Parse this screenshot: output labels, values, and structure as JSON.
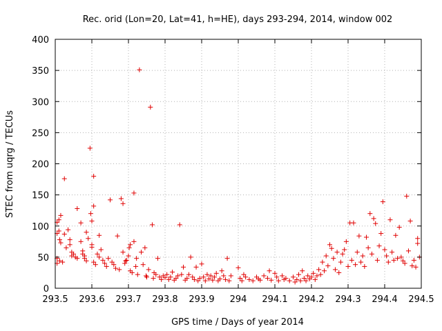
{
  "chart_data": {
    "type": "scatter",
    "title": "Rec. orid (Lon=20, Lat=41, h=HE), days 293-294, 2014, window 002",
    "xlabel": "GPS time / Days of year 2014",
    "ylabel": "STEC from uqrg / TECUs",
    "xlim": [
      293.5,
      294.5
    ],
    "ylim": [
      0,
      400
    ],
    "xticks": [
      293.5,
      293.6,
      293.7,
      293.8,
      293.9,
      294,
      294.1,
      294.2,
      294.3,
      294.4,
      294.5
    ],
    "xtick_labels": [
      "293.5",
      "293.6",
      "293.7",
      "293.8",
      "293.9",
      "294",
      "294.1",
      "294.2",
      "294.3",
      "294.4",
      "294.5"
    ],
    "yticks": [
      0,
      50,
      100,
      150,
      200,
      250,
      300,
      350,
      400
    ],
    "ytick_labels": [
      "0",
      "50",
      "100",
      "150",
      "200",
      "250",
      "300",
      "350",
      "400"
    ],
    "grid": true,
    "marker": "+",
    "color": "#e00000",
    "series": [
      {
        "name": "STEC",
        "points": [
          [
            293.505,
            106
          ],
          [
            293.51,
            92
          ],
          [
            293.515,
            117
          ],
          [
            293.51,
            110
          ],
          [
            293.505,
            88
          ],
          [
            293.515,
            73
          ],
          [
            293.512,
            78
          ],
          [
            293.505,
            48
          ],
          [
            293.512,
            44
          ],
          [
            293.52,
            42
          ],
          [
            293.505,
            40
          ],
          [
            293.525,
            176
          ],
          [
            293.525,
            87
          ],
          [
            293.53,
            65
          ],
          [
            293.535,
            94
          ],
          [
            293.54,
            78
          ],
          [
            293.54,
            70
          ],
          [
            293.545,
            58
          ],
          [
            293.55,
            55
          ],
          [
            293.545,
            52
          ],
          [
            293.555,
            50
          ],
          [
            293.56,
            48
          ],
          [
            293.56,
            128
          ],
          [
            293.57,
            105
          ],
          [
            293.57,
            75
          ],
          [
            293.575,
            60
          ],
          [
            293.575,
            55
          ],
          [
            293.58,
            52
          ],
          [
            293.58,
            48
          ],
          [
            293.585,
            44
          ],
          [
            293.585,
            90
          ],
          [
            293.59,
            80
          ],
          [
            293.595,
            225
          ],
          [
            293.597,
            120
          ],
          [
            293.6,
            108
          ],
          [
            293.6,
            70
          ],
          [
            293.6,
            66
          ],
          [
            293.605,
            180
          ],
          [
            293.605,
            132
          ],
          [
            293.605,
            42
          ],
          [
            293.61,
            38
          ],
          [
            293.615,
            55
          ],
          [
            293.62,
            50
          ],
          [
            293.62,
            85
          ],
          [
            293.625,
            62
          ],
          [
            293.63,
            45
          ],
          [
            293.635,
            40
          ],
          [
            293.64,
            35
          ],
          [
            293.645,
            48
          ],
          [
            293.65,
            142
          ],
          [
            293.655,
            42
          ],
          [
            293.66,
            38
          ],
          [
            293.665,
            32
          ],
          [
            293.67,
            84
          ],
          [
            293.675,
            30
          ],
          [
            293.68,
            144
          ],
          [
            293.685,
            136
          ],
          [
            293.685,
            58
          ],
          [
            293.69,
            40
          ],
          [
            293.692,
            44
          ],
          [
            293.695,
            45
          ],
          [
            293.7,
            52
          ],
          [
            293.702,
            65
          ],
          [
            293.705,
            70
          ],
          [
            293.705,
            28
          ],
          [
            293.71,
            25
          ],
          [
            293.715,
            153
          ],
          [
            293.715,
            75
          ],
          [
            293.72,
            35
          ],
          [
            293.722,
            48
          ],
          [
            293.725,
            22
          ],
          [
            293.73,
            351
          ],
          [
            293.735,
            58
          ],
          [
            293.74,
            38
          ],
          [
            293.745,
            65
          ],
          [
            293.748,
            20
          ],
          [
            293.75,
            18
          ],
          [
            293.755,
            30
          ],
          [
            293.76,
            291
          ],
          [
            293.765,
            102
          ],
          [
            293.768,
            16
          ],
          [
            293.77,
            25
          ],
          [
            293.775,
            22
          ],
          [
            293.78,
            48
          ],
          [
            293.785,
            18
          ],
          [
            293.79,
            14
          ],
          [
            293.795,
            20
          ],
          [
            293.8,
            17
          ],
          [
            293.805,
            22
          ],
          [
            293.81,
            14
          ],
          [
            293.815,
            18
          ],
          [
            293.82,
            26
          ],
          [
            293.825,
            13
          ],
          [
            293.83,
            16
          ],
          [
            293.835,
            20
          ],
          [
            293.84,
            102
          ],
          [
            293.845,
            22
          ],
          [
            293.85,
            34
          ],
          [
            293.855,
            13
          ],
          [
            293.86,
            16
          ],
          [
            293.865,
            22
          ],
          [
            293.87,
            50
          ],
          [
            293.875,
            18
          ],
          [
            293.88,
            14
          ],
          [
            293.885,
            34
          ],
          [
            293.89,
            12
          ],
          [
            293.895,
            16
          ],
          [
            293.9,
            39
          ],
          [
            293.905,
            18
          ],
          [
            293.91,
            12
          ],
          [
            293.915,
            22
          ],
          [
            293.92,
            15
          ],
          [
            293.925,
            20
          ],
          [
            293.93,
            13
          ],
          [
            293.935,
            18
          ],
          [
            293.94,
            24
          ],
          [
            293.945,
            12
          ],
          [
            293.95,
            15
          ],
          [
            293.955,
            28
          ],
          [
            293.96,
            20
          ],
          [
            293.965,
            14
          ],
          [
            293.97,
            48
          ],
          [
            293.975,
            12
          ],
          [
            293.98,
            20
          ],
          [
            294.0,
            33
          ],
          [
            294.005,
            16
          ],
          [
            294.01,
            12
          ],
          [
            294.015,
            22
          ],
          [
            294.02,
            18
          ],
          [
            294.03,
            14
          ],
          [
            294.04,
            12
          ],
          [
            294.05,
            18
          ],
          [
            294.055,
            15
          ],
          [
            294.06,
            13
          ],
          [
            294.07,
            20
          ],
          [
            294.08,
            16
          ],
          [
            294.085,
            28
          ],
          [
            294.09,
            13
          ],
          [
            294.1,
            24
          ],
          [
            294.105,
            18
          ],
          [
            294.11,
            12
          ],
          [
            294.12,
            20
          ],
          [
            294.125,
            14
          ],
          [
            294.13,
            16
          ],
          [
            294.14,
            12
          ],
          [
            294.15,
            18
          ],
          [
            294.155,
            10
          ],
          [
            294.16,
            14
          ],
          [
            294.165,
            22
          ],
          [
            294.17,
            12
          ],
          [
            294.175,
            28
          ],
          [
            294.18,
            16
          ],
          [
            294.185,
            12
          ],
          [
            294.19,
            20
          ],
          [
            294.195,
            15
          ],
          [
            294.2,
            18
          ],
          [
            294.205,
            24
          ],
          [
            294.21,
            14
          ],
          [
            294.215,
            20
          ],
          [
            294.22,
            30
          ],
          [
            294.225,
            22
          ],
          [
            294.23,
            42
          ],
          [
            294.235,
            28
          ],
          [
            294.24,
            52
          ],
          [
            294.245,
            36
          ],
          [
            294.25,
            70
          ],
          [
            294.255,
            64
          ],
          [
            294.26,
            48
          ],
          [
            294.265,
            30
          ],
          [
            294.27,
            58
          ],
          [
            294.275,
            25
          ],
          [
            294.28,
            42
          ],
          [
            294.285,
            55
          ],
          [
            294.29,
            62
          ],
          [
            294.295,
            75
          ],
          [
            294.3,
            35
          ],
          [
            294.305,
            105
          ],
          [
            294.31,
            45
          ],
          [
            294.315,
            105
          ],
          [
            294.32,
            38
          ],
          [
            294.325,
            58
          ],
          [
            294.33,
            84
          ],
          [
            294.335,
            42
          ],
          [
            294.34,
            52
          ],
          [
            294.345,
            35
          ],
          [
            294.35,
            82
          ],
          [
            294.355,
            65
          ],
          [
            294.36,
            120
          ],
          [
            294.365,
            55
          ],
          [
            294.37,
            112
          ],
          [
            294.375,
            104
          ],
          [
            294.38,
            45
          ],
          [
            294.385,
            68
          ],
          [
            294.39,
            88
          ],
          [
            294.395,
            139
          ],
          [
            294.4,
            62
          ],
          [
            294.405,
            52
          ],
          [
            294.41,
            42
          ],
          [
            294.415,
            110
          ],
          [
            294.42,
            58
          ],
          [
            294.425,
            45
          ],
          [
            294.43,
            85
          ],
          [
            294.435,
            48
          ],
          [
            294.44,
            98
          ],
          [
            294.445,
            50
          ],
          [
            294.45,
            44
          ],
          [
            294.455,
            40
          ],
          [
            294.46,
            148
          ],
          [
            294.465,
            60
          ],
          [
            294.47,
            108
          ],
          [
            294.475,
            36
          ],
          [
            294.48,
            45
          ],
          [
            294.485,
            34
          ],
          [
            294.49,
            72
          ],
          [
            294.49,
            80
          ],
          [
            294.495,
            50
          ]
        ]
      }
    ]
  }
}
